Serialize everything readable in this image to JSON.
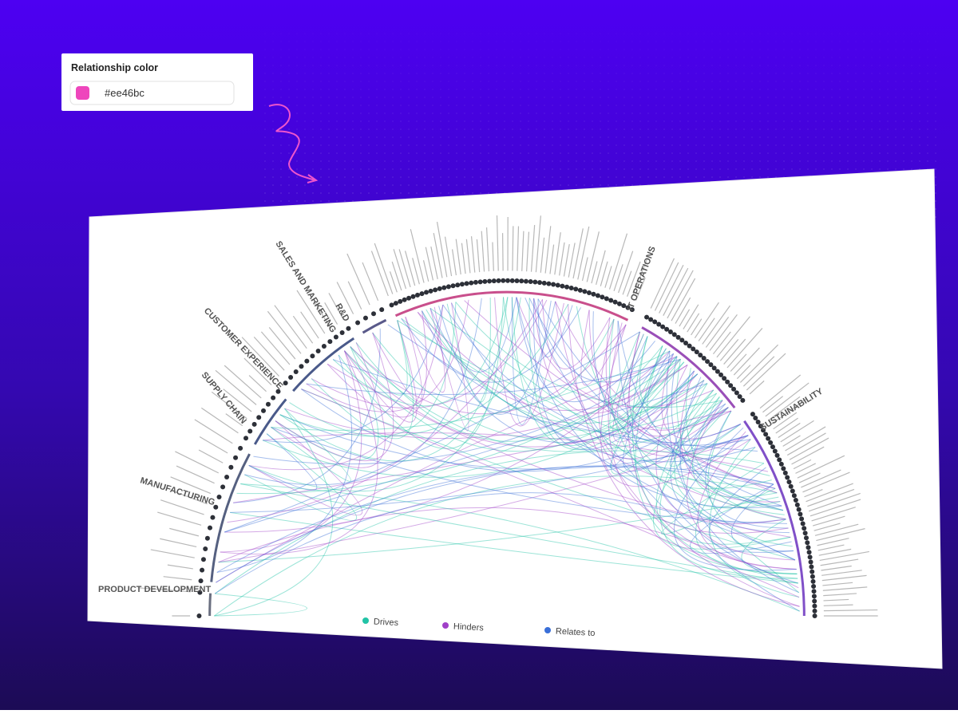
{
  "panel": {
    "title": "Relationship color",
    "value": "#ee46bc"
  },
  "groups": [
    "PRODUCT DEVELOPMENT",
    "MANUFACTURING",
    "SUPPLY CHAIN",
    "CUSTOMER EXPERIENCE",
    "SALES AND MARKETING",
    "R&D",
    "IT OPERATIONS",
    "SUSTAINABILITY"
  ],
  "legend": [
    {
      "label": "Drives",
      "color": "#22c3a6"
    },
    {
      "label": "Hinders",
      "color": "#a040c8"
    },
    {
      "label": "Relates to",
      "color": "#3a6fd8"
    }
  ]
}
